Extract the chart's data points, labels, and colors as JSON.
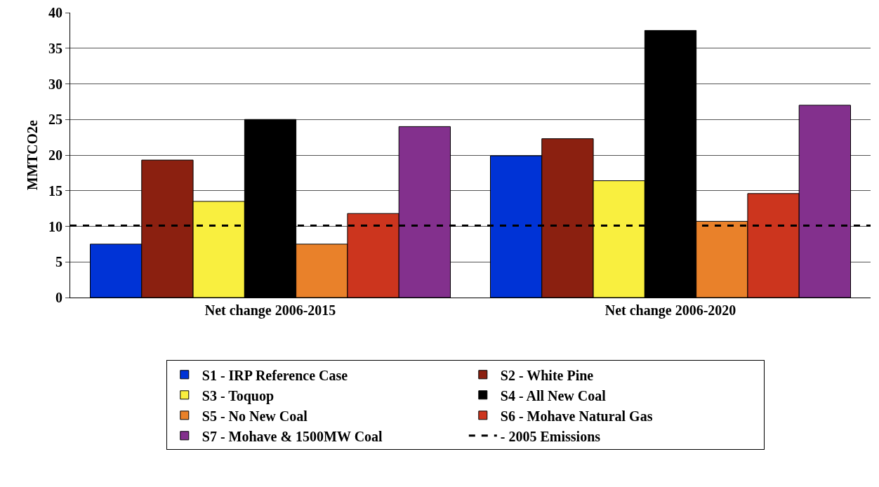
{
  "chart_data": {
    "type": "bar",
    "ylabel": "MMTCO2e",
    "categories": [
      "Net change 2006-2015",
      "Net change 2006-2020"
    ],
    "series": [
      {
        "name": "S1 - IRP Reference Case",
        "color": "#0033d6",
        "values": [
          7.5,
          19.9
        ]
      },
      {
        "name": "S2 - White Pine",
        "color": "#8b2010",
        "values": [
          19.3,
          22.3
        ]
      },
      {
        "name": "S3 - Toquop",
        "color": "#f9ef3f",
        "values": [
          13.5,
          16.4
        ]
      },
      {
        "name": "S4 - All New Coal",
        "color": "#000000",
        "values": [
          25.0,
          37.5
        ]
      },
      {
        "name": "S5 - No New Coal",
        "color": "#e9812a",
        "values": [
          7.5,
          10.7
        ]
      },
      {
        "name": "S6 - Mohave Natural Gas",
        "color": "#cc351e",
        "values": [
          11.8,
          14.6
        ]
      },
      {
        "name": "S7 - Mohave & 1500MW Coal",
        "color": "#83308d",
        "values": [
          24.0,
          27.0
        ]
      }
    ],
    "ref_lines": [
      {
        "axis": "y",
        "value": 10.1,
        "label": "- 2005 Emissions",
        "color": "#000000",
        "line_style": "dashed"
      }
    ],
    "ylim": [
      0,
      40
    ],
    "yticks": [
      0,
      5,
      10,
      15,
      20,
      25,
      30,
      35,
      40
    ],
    "grid": "y",
    "legend": "bottom"
  }
}
